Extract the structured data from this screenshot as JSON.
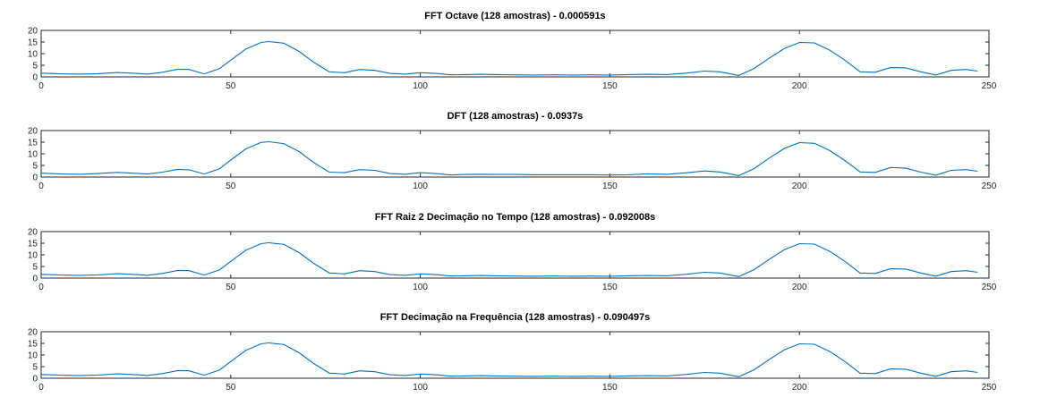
{
  "chart_data": [
    {
      "type": "line",
      "title": "FFT Octave (128 amostras) - 0.000591s",
      "xlim": [
        0,
        250
      ],
      "ylim": [
        0,
        20
      ],
      "xticks": [
        0,
        50,
        100,
        150,
        200,
        250
      ],
      "yticks": [
        0,
        5,
        10,
        15,
        20
      ],
      "grid": false,
      "color": "#0072bd",
      "series": [
        {
          "x": [
            0,
            5,
            10,
            15,
            20,
            25,
            28,
            32,
            36,
            39,
            43,
            47,
            50,
            54,
            58,
            60,
            64,
            68,
            72,
            76,
            80,
            84,
            88,
            92,
            96,
            100,
            104,
            108,
            112,
            116,
            120,
            125,
            130,
            135,
            140,
            145,
            150,
            155,
            160,
            165,
            170,
            175,
            179,
            184,
            188,
            192,
            196,
            200,
            204,
            208,
            212,
            216,
            220,
            224,
            228,
            232,
            236,
            240,
            244,
            247
          ],
          "y": [
            1.6,
            1.3,
            1.2,
            1.4,
            1.9,
            1.5,
            1.2,
            2.0,
            3.3,
            3.2,
            1.3,
            3.5,
            7.2,
            12.0,
            14.8,
            15.2,
            14.5,
            11.0,
            6.2,
            2.2,
            1.8,
            3.2,
            2.8,
            1.5,
            1.2,
            1.8,
            1.5,
            0.9,
            1.0,
            1.1,
            1.0,
            0.9,
            0.8,
            0.9,
            0.8,
            0.9,
            0.8,
            1.0,
            1.1,
            1.0,
            1.6,
            2.5,
            2.2,
            0.6,
            3.6,
            8.0,
            12.2,
            14.8,
            14.6,
            11.5,
            7.2,
            2.2,
            2.0,
            4.0,
            3.9,
            2.2,
            0.8,
            2.8,
            3.2,
            2.5
          ]
        }
      ]
    },
    {
      "type": "line",
      "title": "DFT (128 amostras) - 0.0937s",
      "xlim": [
        0,
        250
      ],
      "ylim": [
        0,
        20
      ],
      "xticks": [
        0,
        50,
        100,
        150,
        200,
        250
      ],
      "yticks": [
        0,
        5,
        10,
        15,
        20
      ],
      "grid": false,
      "color": "#0072bd",
      "series": [
        {
          "x": [
            0,
            5,
            10,
            15,
            20,
            25,
            28,
            32,
            36,
            39,
            43,
            47,
            50,
            54,
            58,
            60,
            64,
            68,
            72,
            76,
            80,
            84,
            88,
            92,
            96,
            100,
            104,
            108,
            112,
            116,
            120,
            125,
            130,
            135,
            140,
            145,
            150,
            155,
            160,
            165,
            170,
            175,
            179,
            184,
            188,
            192,
            196,
            200,
            204,
            208,
            212,
            216,
            220,
            224,
            228,
            232,
            236,
            240,
            244,
            247
          ],
          "y": [
            1.7,
            1.3,
            1.2,
            1.5,
            2.0,
            1.6,
            1.3,
            2.1,
            3.3,
            3.1,
            1.3,
            3.5,
            7.3,
            12.1,
            14.9,
            15.2,
            14.4,
            11.0,
            6.1,
            2.1,
            1.9,
            3.2,
            2.9,
            1.5,
            1.2,
            1.9,
            1.5,
            0.9,
            1.1,
            1.2,
            1.1,
            1.1,
            1.0,
            1.0,
            1.0,
            1.0,
            0.9,
            1.0,
            1.4,
            1.2,
            1.8,
            2.6,
            2.2,
            0.6,
            3.6,
            8.1,
            12.3,
            14.8,
            14.5,
            11.4,
            7.1,
            2.2,
            2.0,
            4.1,
            3.8,
            2.1,
            0.8,
            2.9,
            3.2,
            2.5
          ]
        }
      ]
    },
    {
      "type": "line",
      "title": "FFT Raiz 2 Decimação no Tempo (128 amostras) - 0.092008s",
      "xlim": [
        0,
        250
      ],
      "ylim": [
        0,
        20
      ],
      "xticks": [
        0,
        50,
        100,
        150,
        200,
        250
      ],
      "yticks": [
        0,
        5,
        10,
        15,
        20
      ],
      "grid": false,
      "color": "#0072bd",
      "series": [
        {
          "x": [
            0,
            5,
            10,
            15,
            20,
            25,
            28,
            32,
            36,
            39,
            43,
            47,
            50,
            54,
            58,
            60,
            64,
            68,
            72,
            76,
            80,
            84,
            88,
            92,
            96,
            100,
            104,
            108,
            112,
            116,
            120,
            125,
            130,
            135,
            140,
            145,
            150,
            155,
            160,
            165,
            170,
            175,
            179,
            184,
            188,
            192,
            196,
            200,
            204,
            208,
            212,
            216,
            220,
            224,
            228,
            232,
            236,
            240,
            244,
            247
          ],
          "y": [
            1.6,
            1.3,
            1.2,
            1.4,
            1.9,
            1.5,
            1.2,
            2.0,
            3.3,
            3.2,
            1.3,
            3.5,
            7.2,
            12.0,
            14.8,
            15.2,
            14.5,
            11.0,
            6.2,
            2.2,
            1.8,
            3.2,
            2.8,
            1.5,
            1.2,
            1.8,
            1.5,
            0.9,
            1.0,
            1.1,
            1.0,
            0.9,
            0.8,
            0.9,
            0.8,
            0.9,
            0.8,
            1.0,
            1.1,
            1.0,
            1.6,
            2.5,
            2.2,
            0.6,
            3.6,
            8.0,
            12.2,
            14.8,
            14.6,
            11.5,
            7.2,
            2.2,
            2.0,
            4.0,
            3.9,
            2.2,
            0.8,
            2.8,
            3.2,
            2.5
          ]
        }
      ]
    },
    {
      "type": "line",
      "title": "FFT Decimação na Frequência (128 amostras) - 0.090497s",
      "xlim": [
        0,
        250
      ],
      "ylim": [
        0,
        20
      ],
      "xticks": [
        0,
        50,
        100,
        150,
        200,
        250
      ],
      "yticks": [
        0,
        5,
        10,
        15,
        20
      ],
      "grid": false,
      "color": "#0072bd",
      "series": [
        {
          "x": [
            0,
            5,
            10,
            15,
            20,
            25,
            28,
            32,
            36,
            39,
            43,
            47,
            50,
            54,
            58,
            60,
            64,
            68,
            72,
            76,
            80,
            84,
            88,
            92,
            96,
            100,
            104,
            108,
            112,
            116,
            120,
            125,
            130,
            135,
            140,
            145,
            150,
            155,
            160,
            165,
            170,
            175,
            179,
            184,
            188,
            192,
            196,
            200,
            204,
            208,
            212,
            216,
            220,
            224,
            228,
            232,
            236,
            240,
            244,
            247
          ],
          "y": [
            1.6,
            1.3,
            1.2,
            1.4,
            1.9,
            1.5,
            1.2,
            2.0,
            3.3,
            3.2,
            1.3,
            3.5,
            7.2,
            12.0,
            14.8,
            15.2,
            14.5,
            11.0,
            6.2,
            2.2,
            1.8,
            3.2,
            2.8,
            1.5,
            1.2,
            1.8,
            1.5,
            0.9,
            1.0,
            1.1,
            1.0,
            0.9,
            0.8,
            0.9,
            0.8,
            0.9,
            0.8,
            1.0,
            1.1,
            1.0,
            1.6,
            2.5,
            2.2,
            0.6,
            3.6,
            8.0,
            12.2,
            14.8,
            14.6,
            11.5,
            7.2,
            2.2,
            2.0,
            4.0,
            3.9,
            2.2,
            0.8,
            2.8,
            3.2,
            2.5
          ]
        }
      ]
    }
  ]
}
